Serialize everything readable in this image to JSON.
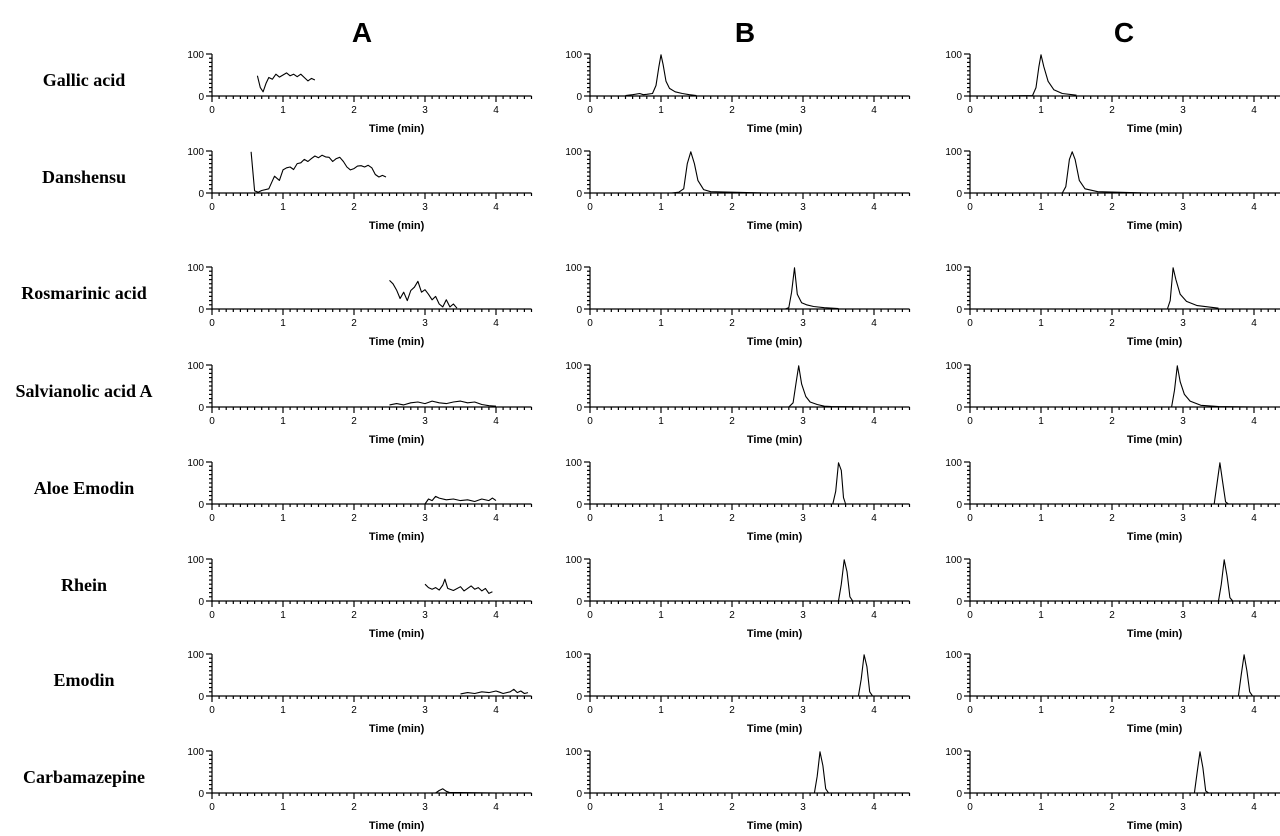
{
  "chart_data": {
    "type": "line",
    "panel_columns": [
      "A",
      "B",
      "C"
    ],
    "compounds": [
      "Gallic acid",
      "Danshensu",
      "Rosmarinic acid",
      "Salvianolic acid A",
      "Aloe Emodin",
      "Rhein",
      "Emodin",
      "Carbamazepine"
    ],
    "xlabel": "Time (min)",
    "xlim": [
      0,
      4.5
    ],
    "ylim": [
      0,
      100
    ],
    "x_ticks": [
      "0",
      "1",
      "2",
      "3",
      "4"
    ],
    "y_ticks": [
      "0",
      "100"
    ],
    "traces": {
      "A": [
        [
          [
            0.64,
            48
          ],
          [
            0.68,
            20
          ],
          [
            0.72,
            10
          ],
          [
            0.76,
            30
          ],
          [
            0.8,
            44
          ],
          [
            0.85,
            40
          ],
          [
            0.9,
            52
          ],
          [
            0.95,
            45
          ],
          [
            1.0,
            50
          ],
          [
            1.05,
            55
          ],
          [
            1.1,
            48
          ],
          [
            1.15,
            52
          ],
          [
            1.2,
            46
          ],
          [
            1.25,
            52
          ],
          [
            1.3,
            44
          ],
          [
            1.35,
            36
          ],
          [
            1.4,
            42
          ],
          [
            1.45,
            38
          ]
        ],
        [
          [
            0.55,
            98
          ],
          [
            0.6,
            5
          ],
          [
            0.65,
            2
          ],
          [
            0.7,
            6
          ],
          [
            0.8,
            10
          ],
          [
            0.88,
            40
          ],
          [
            0.95,
            30
          ],
          [
            1.0,
            55
          ],
          [
            1.05,
            60
          ],
          [
            1.1,
            62
          ],
          [
            1.15,
            56
          ],
          [
            1.2,
            70
          ],
          [
            1.25,
            72
          ],
          [
            1.3,
            80
          ],
          [
            1.35,
            75
          ],
          [
            1.4,
            82
          ],
          [
            1.45,
            88
          ],
          [
            1.5,
            84
          ],
          [
            1.55,
            90
          ],
          [
            1.6,
            86
          ],
          [
            1.65,
            85
          ],
          [
            1.7,
            75
          ],
          [
            1.75,
            82
          ],
          [
            1.8,
            85
          ],
          [
            1.85,
            75
          ],
          [
            1.9,
            62
          ],
          [
            1.95,
            55
          ],
          [
            2.0,
            58
          ],
          [
            2.05,
            64
          ],
          [
            2.1,
            65
          ],
          [
            2.15,
            62
          ],
          [
            2.2,
            66
          ],
          [
            2.25,
            60
          ],
          [
            2.3,
            44
          ],
          [
            2.35,
            38
          ],
          [
            2.4,
            42
          ],
          [
            2.45,
            38
          ]
        ],
        [
          [
            2.5,
            68
          ],
          [
            2.55,
            60
          ],
          [
            2.6,
            45
          ],
          [
            2.65,
            25
          ],
          [
            2.7,
            40
          ],
          [
            2.75,
            20
          ],
          [
            2.8,
            44
          ],
          [
            2.85,
            52
          ],
          [
            2.9,
            66
          ],
          [
            2.95,
            40
          ],
          [
            3.0,
            46
          ],
          [
            3.05,
            35
          ],
          [
            3.1,
            22
          ],
          [
            3.15,
            30
          ],
          [
            3.2,
            12
          ],
          [
            3.25,
            5
          ],
          [
            3.3,
            22
          ],
          [
            3.35,
            5
          ],
          [
            3.4,
            12
          ],
          [
            3.45,
            2
          ]
        ],
        [
          [
            2.5,
            5
          ],
          [
            2.6,
            8
          ],
          [
            2.7,
            5
          ],
          [
            2.8,
            10
          ],
          [
            2.9,
            12
          ],
          [
            3.0,
            8
          ],
          [
            3.1,
            14
          ],
          [
            3.2,
            10
          ],
          [
            3.3,
            8
          ],
          [
            3.4,
            12
          ],
          [
            3.5,
            14
          ],
          [
            3.6,
            10
          ],
          [
            3.7,
            12
          ],
          [
            3.8,
            6
          ],
          [
            3.9,
            3
          ],
          [
            4.0,
            2
          ]
        ],
        [
          [
            3.0,
            0
          ],
          [
            3.05,
            12
          ],
          [
            3.1,
            8
          ],
          [
            3.15,
            18
          ],
          [
            3.2,
            14
          ],
          [
            3.3,
            10
          ],
          [
            3.4,
            12
          ],
          [
            3.5,
            8
          ],
          [
            3.6,
            10
          ],
          [
            3.7,
            6
          ],
          [
            3.8,
            12
          ],
          [
            3.9,
            8
          ],
          [
            3.95,
            14
          ],
          [
            4.0,
            8
          ]
        ],
        [
          [
            3.0,
            40
          ],
          [
            3.05,
            32
          ],
          [
            3.1,
            28
          ],
          [
            3.15,
            32
          ],
          [
            3.2,
            26
          ],
          [
            3.25,
            38
          ],
          [
            3.28,
            52
          ],
          [
            3.32,
            30
          ],
          [
            3.4,
            25
          ],
          [
            3.5,
            34
          ],
          [
            3.55,
            24
          ],
          [
            3.6,
            30
          ],
          [
            3.65,
            36
          ],
          [
            3.7,
            28
          ],
          [
            3.75,
            32
          ],
          [
            3.8,
            24
          ],
          [
            3.85,
            30
          ],
          [
            3.9,
            18
          ],
          [
            3.95,
            22
          ]
        ],
        [
          [
            3.5,
            5
          ],
          [
            3.6,
            8
          ],
          [
            3.7,
            6
          ],
          [
            3.8,
            10
          ],
          [
            3.9,
            8
          ],
          [
            4.0,
            12
          ],
          [
            4.05,
            9
          ],
          [
            4.1,
            6
          ],
          [
            4.2,
            10
          ],
          [
            4.25,
            16
          ],
          [
            4.3,
            8
          ],
          [
            4.35,
            12
          ],
          [
            4.4,
            6
          ],
          [
            4.45,
            8
          ]
        ],
        [
          [
            3.0,
            0
          ],
          [
            3.15,
            0
          ],
          [
            3.2,
            6
          ],
          [
            3.25,
            10
          ],
          [
            3.3,
            4
          ],
          [
            3.35,
            1
          ],
          [
            3.5,
            1
          ],
          [
            4.0,
            0
          ]
        ]
      ],
      "B": [
        [
          [
            0.5,
            1
          ],
          [
            0.6,
            3
          ],
          [
            0.7,
            6
          ],
          [
            0.75,
            3
          ],
          [
            0.8,
            4
          ],
          [
            0.88,
            6
          ],
          [
            0.93,
            25
          ],
          [
            0.97,
            70
          ],
          [
            1.0,
            98
          ],
          [
            1.03,
            75
          ],
          [
            1.07,
            35
          ],
          [
            1.12,
            18
          ],
          [
            1.2,
            10
          ],
          [
            1.3,
            6
          ],
          [
            1.4,
            3
          ],
          [
            1.5,
            1
          ]
        ],
        [
          [
            0.5,
            0
          ],
          [
            1.15,
            0
          ],
          [
            1.25,
            2
          ],
          [
            1.32,
            10
          ],
          [
            1.37,
            70
          ],
          [
            1.42,
            98
          ],
          [
            1.47,
            70
          ],
          [
            1.52,
            30
          ],
          [
            1.6,
            8
          ],
          [
            1.7,
            3
          ],
          [
            2.5,
            0
          ]
        ],
        [
          [
            2.5,
            0
          ],
          [
            2.75,
            0
          ],
          [
            2.8,
            3
          ],
          [
            2.84,
            40
          ],
          [
            2.88,
            98
          ],
          [
            2.92,
            35
          ],
          [
            2.98,
            15
          ],
          [
            3.05,
            10
          ],
          [
            3.15,
            6
          ],
          [
            3.3,
            3
          ],
          [
            3.5,
            1
          ]
        ],
        [
          [
            2.5,
            0
          ],
          [
            2.8,
            0
          ],
          [
            2.86,
            10
          ],
          [
            2.9,
            55
          ],
          [
            2.94,
            98
          ],
          [
            2.98,
            55
          ],
          [
            3.04,
            25
          ],
          [
            3.1,
            12
          ],
          [
            3.2,
            6
          ],
          [
            3.3,
            2
          ],
          [
            3.4,
            1
          ],
          [
            4.0,
            0
          ]
        ],
        [
          [
            3.0,
            0
          ],
          [
            3.42,
            0
          ],
          [
            3.46,
            30
          ],
          [
            3.5,
            98
          ],
          [
            3.54,
            80
          ],
          [
            3.57,
            15
          ],
          [
            3.6,
            0
          ],
          [
            4.0,
            0
          ]
        ],
        [
          [
            3.0,
            0
          ],
          [
            3.5,
            0
          ],
          [
            3.54,
            40
          ],
          [
            3.58,
            98
          ],
          [
            3.62,
            70
          ],
          [
            3.66,
            10
          ],
          [
            3.7,
            0
          ],
          [
            4.0,
            0
          ]
        ],
        [
          [
            3.5,
            0
          ],
          [
            3.78,
            0
          ],
          [
            3.82,
            40
          ],
          [
            3.86,
            98
          ],
          [
            3.9,
            70
          ],
          [
            3.94,
            10
          ],
          [
            3.98,
            0
          ],
          [
            4.5,
            0
          ]
        ],
        [
          [
            3.0,
            0
          ],
          [
            3.16,
            0
          ],
          [
            3.2,
            40
          ],
          [
            3.24,
            98
          ],
          [
            3.28,
            65
          ],
          [
            3.32,
            10
          ],
          [
            3.36,
            0
          ],
          [
            4.0,
            0
          ]
        ]
      ],
      "C": [
        [
          [
            0.5,
            0
          ],
          [
            0.88,
            1
          ],
          [
            0.93,
            20
          ],
          [
            0.97,
            70
          ],
          [
            1.0,
            98
          ],
          [
            1.04,
            70
          ],
          [
            1.1,
            35
          ],
          [
            1.18,
            15
          ],
          [
            1.3,
            6
          ],
          [
            1.5,
            2
          ]
        ],
        [
          [
            0.5,
            0
          ],
          [
            1.3,
            0
          ],
          [
            1.35,
            15
          ],
          [
            1.4,
            80
          ],
          [
            1.44,
            98
          ],
          [
            1.48,
            80
          ],
          [
            1.54,
            30
          ],
          [
            1.62,
            10
          ],
          [
            1.8,
            3
          ],
          [
            2.5,
            0
          ]
        ],
        [
          [
            2.5,
            0
          ],
          [
            2.78,
            0
          ],
          [
            2.82,
            20
          ],
          [
            2.86,
            98
          ],
          [
            2.9,
            70
          ],
          [
            2.96,
            35
          ],
          [
            3.05,
            18
          ],
          [
            3.2,
            8
          ],
          [
            3.5,
            2
          ]
        ],
        [
          [
            2.5,
            0
          ],
          [
            2.84,
            0
          ],
          [
            2.88,
            40
          ],
          [
            2.92,
            98
          ],
          [
            2.96,
            60
          ],
          [
            3.02,
            30
          ],
          [
            3.1,
            14
          ],
          [
            3.25,
            4
          ],
          [
            3.5,
            1
          ],
          [
            4.0,
            0
          ]
        ],
        [
          [
            3.0,
            0
          ],
          [
            3.44,
            0
          ],
          [
            3.48,
            50
          ],
          [
            3.52,
            98
          ],
          [
            3.56,
            50
          ],
          [
            3.6,
            5
          ],
          [
            3.64,
            0
          ],
          [
            4.0,
            0
          ]
        ],
        [
          [
            3.0,
            0
          ],
          [
            3.5,
            0
          ],
          [
            3.54,
            40
          ],
          [
            3.58,
            98
          ],
          [
            3.62,
            60
          ],
          [
            3.66,
            8
          ],
          [
            3.7,
            0
          ],
          [
            4.0,
            0
          ]
        ],
        [
          [
            3.5,
            0
          ],
          [
            3.78,
            0
          ],
          [
            3.82,
            50
          ],
          [
            3.86,
            98
          ],
          [
            3.9,
            60
          ],
          [
            3.94,
            10
          ],
          [
            3.98,
            0
          ],
          [
            4.5,
            0
          ]
        ],
        [
          [
            3.0,
            0
          ],
          [
            3.16,
            0
          ],
          [
            3.2,
            50
          ],
          [
            3.24,
            98
          ],
          [
            3.28,
            60
          ],
          [
            3.32,
            5
          ],
          [
            3.36,
            0
          ],
          [
            4.0,
            0
          ]
        ]
      ]
    }
  }
}
